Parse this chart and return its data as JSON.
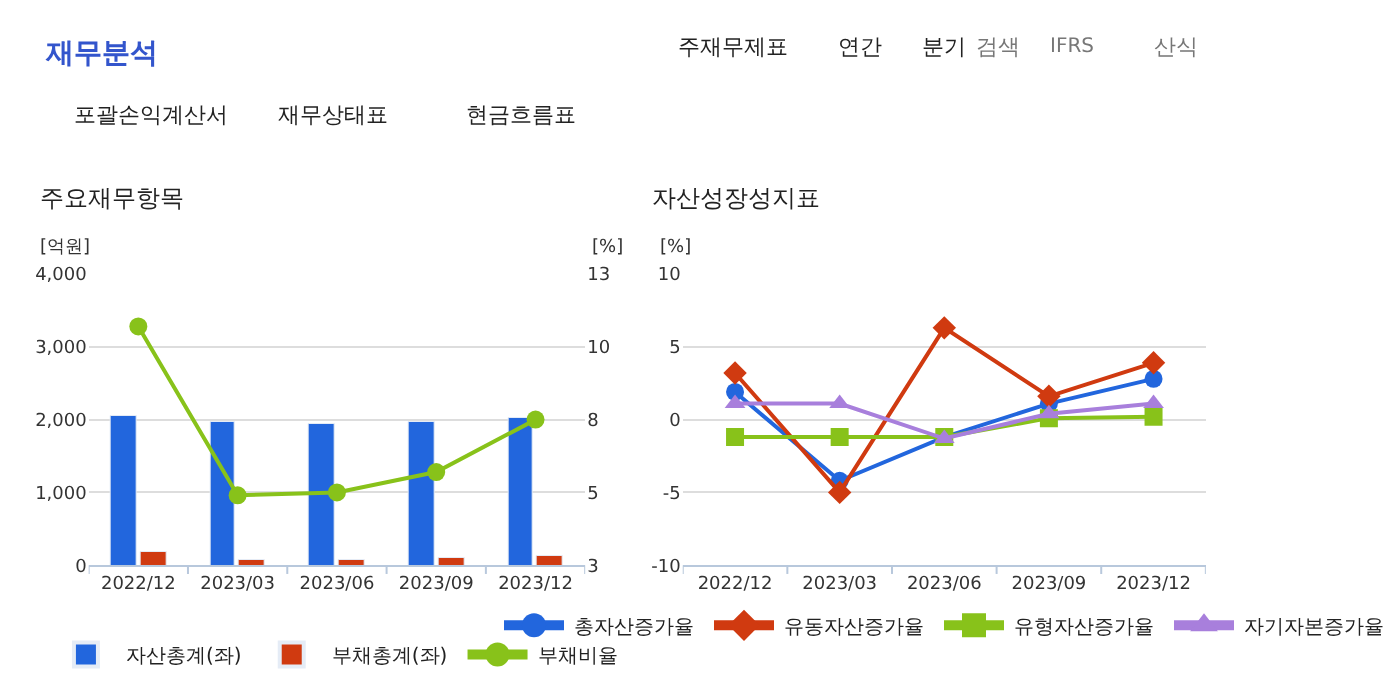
{
  "chart_data": [
    {
      "type": "bar",
      "title": "주요재무항목",
      "ylabel": "[억원]",
      "y2label": "[%]",
      "annotations": [
        "재무분석",
        "주재무제표",
        "연간",
        "분기",
        "검색",
        "IFRS",
        "산식",
        "포괄손익계산서",
        "재무상태표",
        "현금흐름표"
      ],
      "categories": [
        "2022/12",
        "2023/03",
        "2023/06",
        "2023/09",
        "2023/12"
      ],
      "series": [
        {
          "name": "자산총계(좌)",
          "color": "#2266dd",
          "values": [
            2040,
            1960,
            1930,
            1960,
            2010
          ]
        },
        {
          "name": "부채총계(좌)",
          "color": "#d03a10",
          "values": [
            180,
            60,
            60,
            90,
            120
          ]
        },
        {
          "name": "부채비율",
          "type": "line",
          "axis": "y2",
          "marker": "circle",
          "color": "#88c21a",
          "values": [
            11.2,
            5.4,
            5.5,
            6.2,
            8.0
          ]
        }
      ],
      "ylim": [
        0,
        4000
      ],
      "yticks": [
        0,
        {
          "value": 1000,
          "label": "1,000"
        },
        {
          "value": 2000,
          "label": "2,000"
        },
        {
          "value": 3000,
          "label": "3,000"
        },
        {
          "value": 4000,
          "label": "4,000"
        }
      ],
      "y2lim": [
        3,
        13
      ],
      "y2ticks": [
        3,
        {
          "value": 5.5,
          "label": "5"
        },
        8,
        {
          "value": 10.5,
          "label": "10"
        },
        13
      ],
      "grid": "y",
      "legend": "bottom"
    },
    {
      "type": "line",
      "title": "자산성장성지표",
      "ylabel": "[%]",
      "categories": [
        "2022/12",
        "2023/03",
        "2023/06",
        "2023/09",
        "2023/12"
      ],
      "series": [
        {
          "name": "총자산증가율",
          "color": "#2266dd",
          "marker": "circle",
          "values": [
            1.9,
            -4.2,
            -1.2,
            1.1,
            2.8
          ]
        },
        {
          "name": "유동자산증가율",
          "color": "#d03a10",
          "marker": "diamond",
          "values": [
            3.2,
            -5.0,
            6.3,
            1.6,
            3.9
          ]
        },
        {
          "name": "유형자산증가율",
          "color": "#88c21a",
          "marker": "square",
          "values": [
            -1.2,
            -1.2,
            -1.2,
            0.1,
            0.2
          ]
        },
        {
          "name": "자기자본증가율",
          "color": "#a87fdc",
          "marker": "triangle",
          "values": [
            1.1,
            1.1,
            -1.3,
            0.4,
            1.1
          ]
        }
      ],
      "ylim": [
        -10,
        10
      ],
      "yticks": [
        -10,
        -5,
        0,
        5,
        10
      ],
      "grid": "y",
      "legend": "bottom"
    }
  ]
}
